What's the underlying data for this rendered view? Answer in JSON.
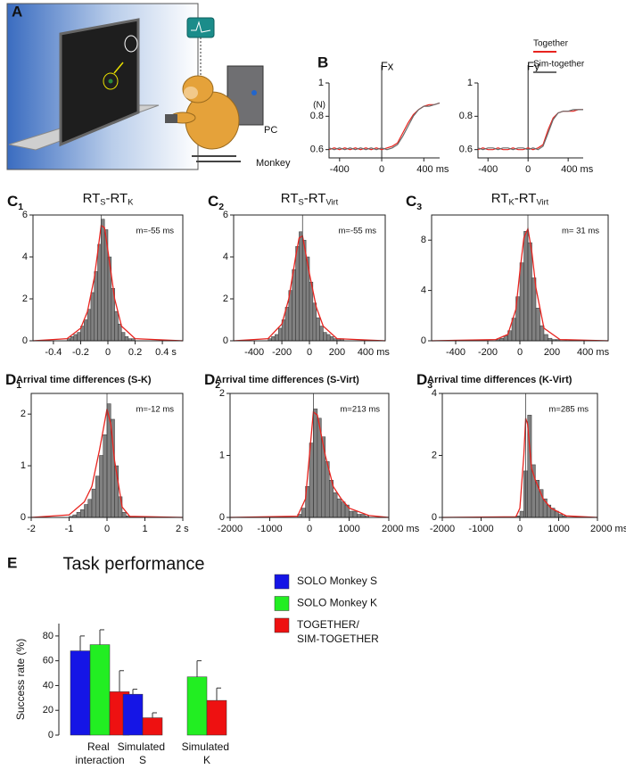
{
  "illustration": {
    "label": "A",
    "texts": [
      "PC",
      "Monkey"
    ]
  },
  "chart_data": [
    {
      "type": "line",
      "panel": "B",
      "title": "Fx",
      "y_label": "(N)",
      "x": [
        -500,
        -450,
        -400,
        -350,
        -300,
        -250,
        -200,
        -150,
        -100,
        -50,
        0,
        50,
        100,
        150,
        200,
        250,
        300,
        350,
        400,
        450,
        500,
        550
      ],
      "series": [
        {
          "color": "#e8241f",
          "values": [
            0.6,
            0.61,
            0.6,
            0.61,
            0.6,
            0.61,
            0.6,
            0.61,
            0.6,
            0.61,
            0.6,
            0.61,
            0.62,
            0.64,
            0.7,
            0.76,
            0.81,
            0.84,
            0.86,
            0.87,
            0.87,
            0.88
          ]
        },
        {
          "color": "#6b6b6b",
          "values": [
            0.61,
            0.6,
            0.61,
            0.6,
            0.61,
            0.6,
            0.61,
            0.6,
            0.61,
            0.6,
            0.61,
            0.6,
            0.61,
            0.63,
            0.68,
            0.74,
            0.8,
            0.84,
            0.86,
            0.86,
            0.87,
            0.88
          ]
        }
      ],
      "xlim": [
        -500,
        550
      ],
      "xticks": [
        -400,
        0,
        {
          "value": 400,
          "label": "400 ms"
        }
      ],
      "ylim": [
        0.55,
        1.0
      ],
      "yticks": [
        0.6,
        0.8,
        1
      ]
    },
    {
      "type": "line",
      "title": "Fy",
      "x": [
        -500,
        -450,
        -400,
        -350,
        -300,
        -250,
        -200,
        -150,
        -100,
        -50,
        0,
        50,
        100,
        150,
        200,
        250,
        300,
        350,
        400,
        450,
        500,
        550
      ],
      "series": [
        {
          "name": "Together",
          "color": "#e8241f",
          "values": [
            0.6,
            0.61,
            0.6,
            0.6,
            0.61,
            0.6,
            0.6,
            0.61,
            0.6,
            0.6,
            0.61,
            0.6,
            0.61,
            0.63,
            0.72,
            0.79,
            0.82,
            0.83,
            0.83,
            0.83,
            0.84,
            0.84
          ]
        },
        {
          "name": "Sim-together",
          "color": "#6b6b6b",
          "values": [
            0.61,
            0.6,
            0.61,
            0.61,
            0.6,
            0.61,
            0.61,
            0.6,
            0.61,
            0.61,
            0.6,
            0.61,
            0.6,
            0.62,
            0.7,
            0.78,
            0.82,
            0.83,
            0.83,
            0.84,
            0.84,
            0.84
          ]
        }
      ],
      "xlim": [
        -500,
        550
      ],
      "xticks": [
        -400,
        0,
        {
          "value": 400,
          "label": "400 ms"
        }
      ],
      "ylim": [
        0.55,
        1.0
      ],
      "yticks": [
        0.6,
        0.8,
        1
      ]
    },
    {
      "type": "histogram",
      "panel": [
        "C",
        "1"
      ],
      "title_parts": [
        "RT",
        "S",
        "-RT",
        "K"
      ],
      "annotation": "m=-55 ms",
      "bins": [
        -0.3,
        -0.275,
        -0.25,
        -0.225,
        -0.2,
        -0.175,
        -0.15,
        -0.125,
        -0.1,
        -0.075,
        -0.05,
        -0.025,
        0,
        0.025,
        0.05,
        0.075,
        0.1,
        0.125,
        0.15,
        0.175,
        0.2
      ],
      "counts": [
        0.1,
        0.2,
        0.3,
        0.4,
        0.7,
        1.0,
        1.5,
        2.3,
        3.3,
        4.6,
        5.8,
        5.3,
        4.0,
        2.5,
        1.4,
        0.8,
        0.4,
        0.2,
        0.1,
        0.1
      ],
      "color": "#808080",
      "fit": {
        "color": "#e8241f",
        "x": [
          -0.55,
          -0.3,
          -0.2,
          -0.15,
          -0.1,
          -0.075,
          -0.05,
          -0.025,
          0,
          0.05,
          0.1,
          0.2,
          0.55
        ],
        "values": [
          0,
          0.1,
          0.6,
          1.4,
          3.0,
          4.2,
          5.5,
          5.4,
          4.3,
          2.0,
          0.7,
          0.1,
          0
        ]
      },
      "xlim": [
        -0.55,
        0.55
      ],
      "xticks": [
        -0.4,
        -0.2,
        0,
        0.2,
        {
          "value": 0.4,
          "label": "0.4 s"
        }
      ],
      "ylim": [
        0,
        6
      ],
      "yticks": [
        0,
        2,
        4,
        6
      ]
    },
    {
      "type": "histogram",
      "panel": [
        "C",
        "2"
      ],
      "title_parts": [
        "RT",
        "S",
        "-RT",
        "Virt"
      ],
      "annotation": "m=-55 ms",
      "bins": [
        -300,
        -275,
        -250,
        -225,
        -200,
        -175,
        -150,
        -125,
        -100,
        -75,
        -50,
        -25,
        0,
        25,
        50,
        75,
        100,
        125,
        150,
        175,
        200,
        225,
        250
      ],
      "counts": [
        0.1,
        0.2,
        0.3,
        0.6,
        1.0,
        1.6,
        2.4,
        3.4,
        4.5,
        5.2,
        4.8,
        4.0,
        2.8,
        1.8,
        1.1,
        0.7,
        0.4,
        0.3,
        0.2,
        0.1,
        0.1,
        0.1
      ],
      "color": "#808080",
      "fit": {
        "color": "#e8241f",
        "x": [
          -550,
          -300,
          -200,
          -150,
          -100,
          -75,
          -50,
          0,
          50,
          100,
          200,
          550
        ],
        "values": [
          0,
          0.1,
          0.8,
          2.0,
          4.0,
          4.9,
          5.0,
          3.2,
          1.6,
          0.7,
          0.1,
          0
        ]
      },
      "xlim": [
        -550,
        550
      ],
      "xticks": [
        -400,
        -200,
        0,
        200,
        {
          "value": 400,
          "label": "400 ms"
        }
      ],
      "ylim": [
        0,
        6
      ],
      "yticks": [
        0,
        2,
        4,
        6
      ]
    },
    {
      "type": "histogram",
      "panel": [
        "C",
        "3"
      ],
      "title_parts": [
        "RT",
        "K",
        "-RT",
        "Virt"
      ],
      "annotation": "m= 31 ms",
      "bins": [
        -150,
        -125,
        -100,
        -75,
        -50,
        -25,
        0,
        25,
        50,
        75,
        100,
        125,
        150,
        175,
        200,
        225,
        250
      ],
      "counts": [
        0.1,
        0.2,
        0.4,
        0.8,
        1.8,
        3.5,
        6.2,
        8.7,
        7.8,
        5.0,
        2.6,
        1.2,
        0.5,
        0.2,
        0.1,
        0.1
      ],
      "color": "#808080",
      "fit": {
        "color": "#e8241f",
        "x": [
          -550,
          -150,
          -75,
          -25,
          0,
          25,
          50,
          75,
          100,
          150,
          250,
          550
        ],
        "values": [
          0,
          0.1,
          0.5,
          2.5,
          5.5,
          8.2,
          8.9,
          7.0,
          4.2,
          1.0,
          0.1,
          0
        ]
      },
      "xlim": [
        -550,
        550
      ],
      "xticks": [
        -400,
        -200,
        0,
        200,
        {
          "value": 400,
          "label": "400 ms"
        }
      ],
      "ylim": [
        0,
        10
      ],
      "yticks": [
        0,
        4,
        8
      ]
    },
    {
      "type": "histogram",
      "panel": [
        "D",
        "1"
      ],
      "title": "Arrival time  differences (S-K)",
      "annotation": "m=-12 ms",
      "bins": [
        -1.0,
        -0.9,
        -0.8,
        -0.7,
        -0.6,
        -0.5,
        -0.4,
        -0.3,
        -0.2,
        -0.1,
        0,
        0.1,
        0.2,
        0.3,
        0.4,
        0.5,
        0.6
      ],
      "counts": [
        0.02,
        0.05,
        0.1,
        0.15,
        0.25,
        0.35,
        0.55,
        0.8,
        1.2,
        1.6,
        2.2,
        1.9,
        1.0,
        0.4,
        0.1,
        0.03
      ],
      "color": "#808080",
      "fit": {
        "color": "#e8241f",
        "x": [
          -2,
          -1,
          -0.6,
          -0.4,
          -0.2,
          -0.1,
          0,
          0.1,
          0.2,
          0.4,
          0.6,
          2
        ],
        "values": [
          0,
          0.05,
          0.3,
          0.6,
          1.3,
          1.7,
          2.1,
          1.8,
          1.1,
          0.2,
          0.02,
          0
        ]
      },
      "xlim": [
        -2,
        2
      ],
      "xticks": [
        -2,
        -1,
        0,
        1,
        {
          "value": 2,
          "label": "2 s"
        }
      ],
      "ylim": [
        0,
        2.4
      ],
      "yticks": [
        0,
        1,
        2
      ]
    },
    {
      "type": "histogram",
      "panel": [
        "D",
        "2"
      ],
      "title": "Arrival time  differences (S-Virt)",
      "annotation": "m=213 ms",
      "bins": [
        -300,
        -200,
        -100,
        0,
        100,
        200,
        300,
        400,
        500,
        600,
        700,
        800,
        900,
        1000,
        1100,
        1200,
        1300,
        1400,
        1500
      ],
      "counts": [
        0.05,
        0.15,
        0.5,
        1.2,
        1.75,
        1.6,
        1.3,
        0.9,
        0.6,
        0.4,
        0.3,
        0.25,
        0.2,
        0.1,
        0.1,
        0.05,
        0.05,
        0.02
      ],
      "color": "#808080",
      "fit": {
        "color": "#e8241f",
        "x": [
          -2000,
          -300,
          -100,
          0,
          100,
          200,
          400,
          600,
          800,
          1000,
          1500,
          2000
        ],
        "values": [
          0,
          0.02,
          0.3,
          1.0,
          1.7,
          1.65,
          1.0,
          0.5,
          0.3,
          0.15,
          0.03,
          0
        ]
      },
      "xlim": [
        -2000,
        2000
      ],
      "xticks": [
        -2000,
        -1000,
        0,
        1000,
        {
          "value": 2000,
          "label": "2000 ms"
        }
      ],
      "ylim": [
        0,
        2
      ],
      "yticks": [
        0,
        1,
        2
      ]
    },
    {
      "type": "histogram",
      "panel": [
        "D",
        "3"
      ],
      "title": "Arrival time  differences (K-Virt)",
      "annotation": "m=285 ms",
      "bins": [
        -100,
        0,
        100,
        200,
        300,
        400,
        500,
        600,
        700,
        800,
        900,
        1000,
        1100,
        1200
      ],
      "counts": [
        0.05,
        0.2,
        1.5,
        3.3,
        1.7,
        1.2,
        0.9,
        0.6,
        0.4,
        0.3,
        0.2,
        0.1,
        0.05
      ],
      "color": "#808080",
      "fit": {
        "color": "#e8241f",
        "x": [
          -2000,
          -100,
          0,
          100,
          150,
          200,
          300,
          400,
          600,
          800,
          1200,
          2000
        ],
        "values": [
          0,
          0.02,
          0.3,
          2.0,
          3.2,
          3.0,
          1.6,
          1.2,
          0.6,
          0.3,
          0.05,
          0
        ]
      },
      "xlim": [
        -2000,
        2000
      ],
      "xticks": [
        -2000,
        -1000,
        0,
        1000,
        {
          "value": 2000,
          "label": "2000 ms"
        }
      ],
      "ylim": [
        0,
        4
      ],
      "yticks": [
        0,
        2,
        4
      ]
    },
    {
      "type": "bar",
      "panel": "E",
      "title": "Task performance",
      "y_label": "Success rate (%)",
      "categories": [
        "Real\ninteraction",
        "Simulated\nS",
        "Simulated\nK"
      ],
      "series": [
        {
          "name": "SOLO Monkey S",
          "color": "#1515e6",
          "values": [
            68,
            33,
            null
          ],
          "errors": [
            12,
            4,
            null
          ]
        },
        {
          "name": "SOLO Monkey K",
          "color": "#22ee22",
          "values": [
            73,
            null,
            47
          ],
          "errors": [
            12,
            null,
            13
          ]
        },
        {
          "name": "TOGETHER/\nSIM-TOGETHER",
          "color": "#ee1111",
          "values": [
            35,
            14,
            28
          ],
          "errors": [
            17,
            4,
            10
          ]
        }
      ],
      "ylim": [
        0,
        90
      ],
      "yticks": [
        0,
        20,
        40,
        60,
        80
      ]
    }
  ]
}
